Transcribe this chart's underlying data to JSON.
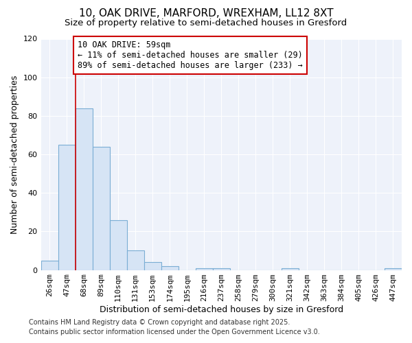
{
  "title_line1": "10, OAK DRIVE, MARFORD, WREXHAM, LL12 8XT",
  "title_line2": "Size of property relative to semi-detached houses in Gresford",
  "xlabel": "Distribution of semi-detached houses by size in Gresford",
  "ylabel": "Number of semi-detached properties",
  "categories": [
    "26sqm",
    "47sqm",
    "68sqm",
    "89sqm",
    "110sqm",
    "131sqm",
    "153sqm",
    "174sqm",
    "195sqm",
    "216sqm",
    "237sqm",
    "258sqm",
    "279sqm",
    "300sqm",
    "321sqm",
    "342sqm",
    "363sqm",
    "384sqm",
    "405sqm",
    "426sqm",
    "447sqm"
  ],
  "values": [
    5,
    65,
    84,
    64,
    26,
    10,
    4,
    2,
    0,
    1,
    1,
    0,
    0,
    0,
    1,
    0,
    0,
    0,
    0,
    0,
    1
  ],
  "bar_color": "#d6e4f5",
  "bar_edge_color": "#7aadd4",
  "bar_edge_width": 0.8,
  "background_color": "#ffffff",
  "plot_bg_color": "#eef2fa",
  "grid_color": "#ffffff",
  "vline_x": 1.5,
  "vline_color": "#cc0000",
  "annotation_text": "10 OAK DRIVE: 59sqm\n← 11% of semi-detached houses are smaller (29)\n89% of semi-detached houses are larger (233) →",
  "annotation_box_color": "#ffffff",
  "annotation_box_edge_color": "#cc0000",
  "ylim": [
    0,
    120
  ],
  "yticks": [
    0,
    20,
    40,
    60,
    80,
    100,
    120
  ],
  "footer_line1": "Contains HM Land Registry data © Crown copyright and database right 2025.",
  "footer_line2": "Contains public sector information licensed under the Open Government Licence v3.0.",
  "title_fontsize": 11,
  "subtitle_fontsize": 9.5,
  "axis_label_fontsize": 9,
  "tick_fontsize": 8,
  "annotation_fontsize": 8.5,
  "footer_fontsize": 7
}
